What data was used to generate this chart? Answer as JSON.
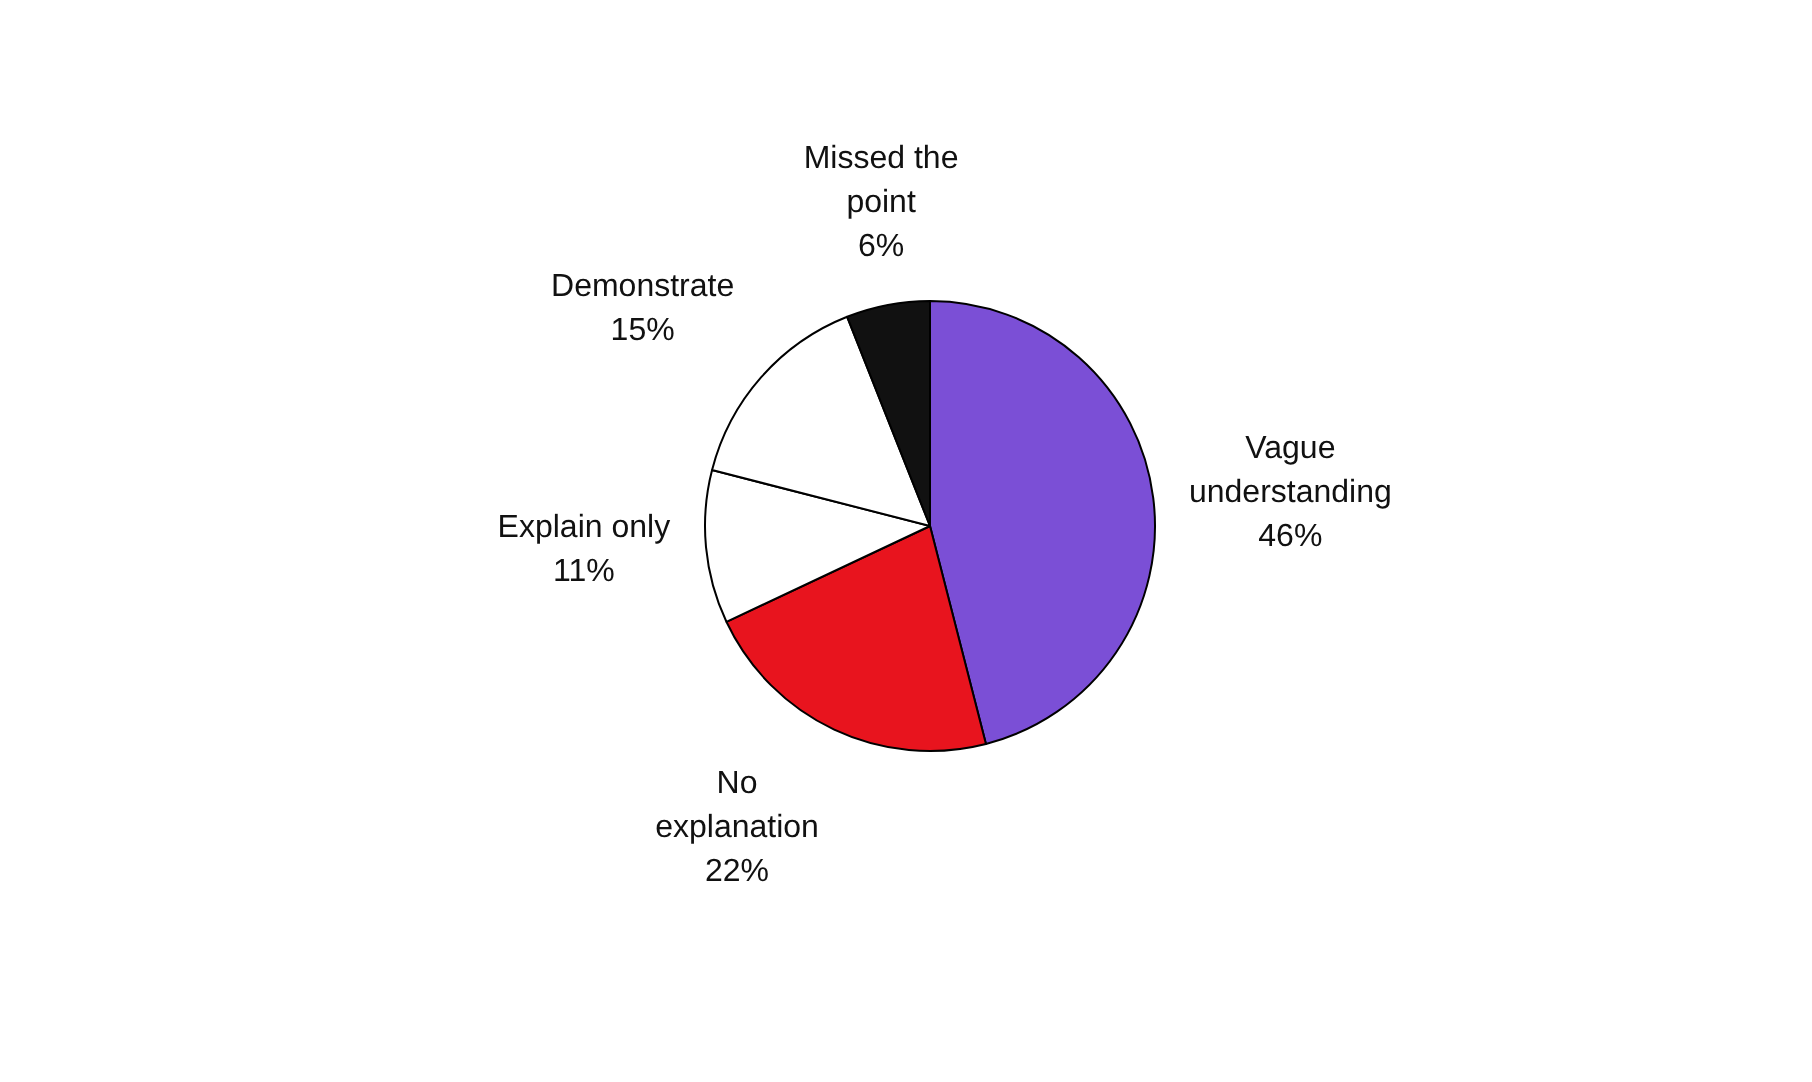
{
  "chart_data": {
    "type": "pie",
    "categories": [
      "Vague understanding",
      "No explanation",
      "Explain only",
      "Demonstrate",
      "Missed the point"
    ],
    "values": [
      46,
      22,
      11,
      15,
      6
    ],
    "value_labels": [
      "46%",
      "22%",
      "11%",
      "15%",
      "6%"
    ],
    "colors": [
      "#7b4fd6",
      "#e8141e",
      "#ffffff",
      "#ffffff",
      "#111111"
    ],
    "legend": false
  }
}
